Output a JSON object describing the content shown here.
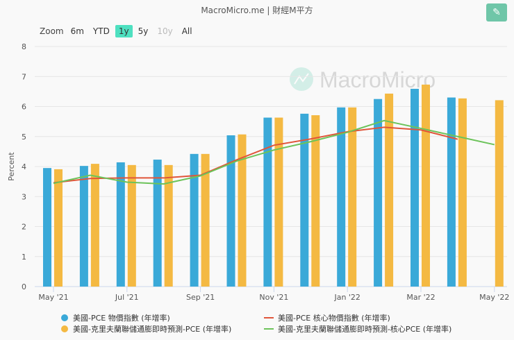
{
  "title": "MacroMicro.me | 財經M平方",
  "watermark": "MacroMicro",
  "edit_icon": "pencil-icon",
  "range_selector": {
    "label": "Zoom",
    "buttons": [
      "6m",
      "YTD",
      "1y",
      "5y",
      "10y",
      "All"
    ],
    "selected": "1y",
    "disabled": [
      "10y"
    ]
  },
  "chart_data": {
    "type": "bar",
    "ylabel": "Percent",
    "ylim": [
      0,
      8
    ],
    "yticks": [
      "0",
      "1",
      "2",
      "3",
      "4",
      "5",
      "6",
      "7",
      "8"
    ],
    "grid": true,
    "legend_position": "bottom",
    "categories": [
      "May '21",
      "Jun '21",
      "Jul '21",
      "Aug '21",
      "Sep '21",
      "Oct '21",
      "Nov '21",
      "Dec '21",
      "Jan '22",
      "Feb '22",
      "Mar '22",
      "Apr '22",
      "May '22"
    ],
    "xtick_labels": [
      "May '21",
      "Jul '21",
      "Sep '21",
      "Nov '21",
      "Jan '22",
      "Mar '22",
      "May '22"
    ],
    "series": [
      {
        "name": "美國-PCE 物價指數 (年增率)",
        "kind": "bar",
        "color": "#3aa9d8",
        "values": [
          3.95,
          4.02,
          4.14,
          4.23,
          4.42,
          5.04,
          5.63,
          5.76,
          5.97,
          6.25,
          6.59,
          6.3,
          null
        ]
      },
      {
        "name": "美國-克里夫蘭聯儲通膨即時預測-PCE (年增率)",
        "kind": "bar",
        "color": "#f4b942",
        "values": [
          3.91,
          4.09,
          4.05,
          4.05,
          4.42,
          5.07,
          5.63,
          5.71,
          5.97,
          6.43,
          6.73,
          6.27,
          6.21
        ]
      },
      {
        "name": "美國-PCE 核心物價指數 (年增率)",
        "kind": "line",
        "color": "#e0553a",
        "values": [
          3.46,
          3.6,
          3.62,
          3.62,
          3.71,
          4.23,
          4.71,
          4.92,
          5.16,
          5.31,
          5.22,
          4.91,
          null
        ]
      },
      {
        "name": "美國-克里夫蘭聯儲通膨即時預測-核心PCE (年增率)",
        "kind": "line",
        "color": "#6cc35a",
        "values": [
          3.44,
          3.71,
          3.48,
          3.42,
          3.69,
          4.19,
          4.55,
          4.83,
          5.14,
          5.53,
          5.27,
          5.0,
          4.73
        ]
      }
    ]
  }
}
